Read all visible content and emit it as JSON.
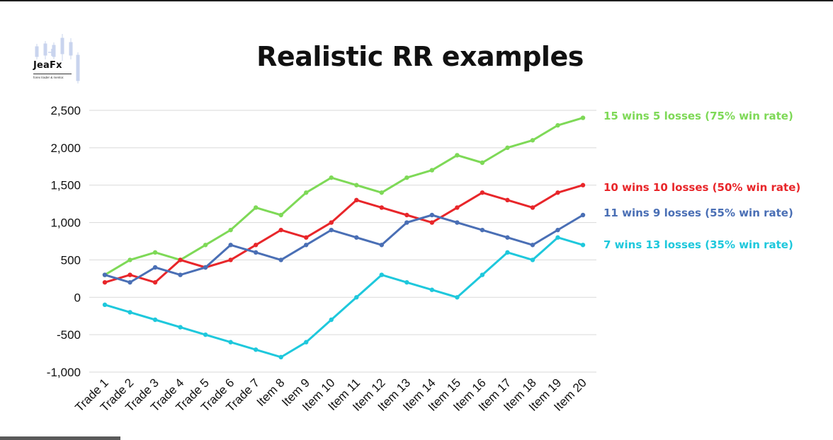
{
  "brand": {
    "name": "JeaFx",
    "tagline": "forex trader & mentor."
  },
  "chart_data": {
    "type": "line",
    "title": "Realistic RR examples",
    "xlabel": "",
    "ylabel": "",
    "ylim": [
      -1000,
      2500
    ],
    "yticks": [
      2500,
      2000,
      1500,
      1000,
      500,
      0,
      -500,
      -1000
    ],
    "ytick_labels": [
      "2,500",
      "2,000",
      "1,500",
      "1,000",
      "500",
      "0",
      "-500",
      "-1,000"
    ],
    "grid": true,
    "legend_position": "right",
    "categories": [
      "Trade 1",
      "Trade 2",
      "Trade 3",
      "Trade 4",
      "Trade 5",
      "Trade 6",
      "Trade 7",
      "Item 8",
      "Item 9",
      "Item 10",
      "Item 11",
      "Item 12",
      "Item 13",
      "Item 14",
      "Item 15",
      "Item 16",
      "Item 17",
      "Item 18",
      "Item 19",
      "Item 20"
    ],
    "series": [
      {
        "name": "15 wins 5 losses (75% win rate)",
        "color": "#7ed957",
        "values": [
          300,
          500,
          600,
          500,
          700,
          900,
          1200,
          1100,
          1400,
          1600,
          1500,
          1400,
          1600,
          1700,
          1900,
          1800,
          2000,
          2100,
          2300,
          2400
        ]
      },
      {
        "name": "10 wins 10 losses (50% win rate)",
        "color": "#e8262a",
        "values": [
          200,
          300,
          200,
          500,
          400,
          500,
          700,
          900,
          800,
          1000,
          1300,
          1200,
          1100,
          1000,
          1200,
          1400,
          1300,
          1200,
          1400,
          1500
        ]
      },
      {
        "name": "11 wins 9 losses (55% win rate)",
        "color": "#4a6fb5",
        "values": [
          300,
          200,
          400,
          300,
          400,
          700,
          600,
          500,
          700,
          900,
          800,
          700,
          1000,
          1100,
          1000,
          900,
          800,
          700,
          900,
          1100
        ]
      },
      {
        "name": "7 wins 13 losses (35% win rate)",
        "color": "#1ec8dc",
        "values": [
          -100,
          -200,
          -300,
          -400,
          -500,
          -600,
          -700,
          -800,
          -600,
          -300,
          0,
          300,
          200,
          100,
          0,
          300,
          600,
          500,
          800,
          700
        ]
      }
    ]
  }
}
